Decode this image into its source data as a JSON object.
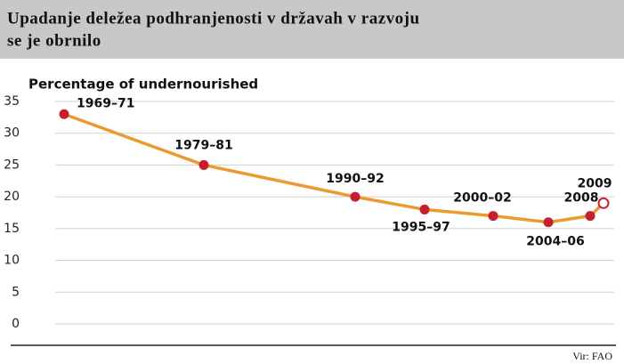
{
  "chart_data": {
    "type": "line",
    "title_lines": [
      "Upadanje deležea podhranjenosti v državah v razvoju",
      "se je obrnilo"
    ],
    "y_label": "Percentage of undernourished",
    "source": "Vir: FAO",
    "categories": [
      "1969–71",
      "1979–81",
      "1990–92",
      "1995–97",
      "2000–02",
      "2004–06",
      "2008",
      "2009"
    ],
    "values": [
      33,
      25,
      20,
      18,
      17,
      16,
      17,
      19
    ],
    "line_color": "#eb9a2e",
    "marker_color": "#c4202e",
    "ylim": [
      0,
      35
    ],
    "yticks": [
      0,
      5,
      10,
      15,
      20,
      25,
      30,
      35
    ],
    "grid": true
  }
}
